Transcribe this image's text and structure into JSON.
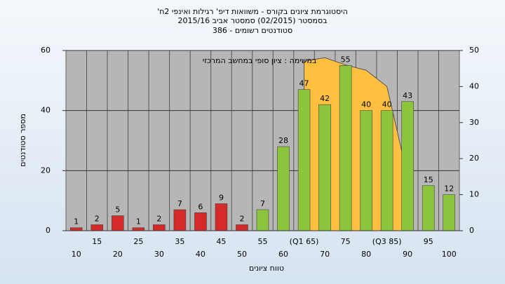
{
  "chart_data": {
    "type": "bar",
    "title": [
      "היסטוגרמת ציונים בקורס - משוואות דיפ' רגילות ואינפי 2ח'",
      "בסמסטר  (02/2015)  סמסטר אביב 2015/16",
      "סטודנטים רשומים - 386"
    ],
    "annotation": "במשימה : ציון סופי במחשב המרכזי",
    "x_label": "טווח ציונים",
    "y_label": "מספר סטודנטים",
    "categories": [
      "10",
      "15",
      "20",
      "25",
      "30",
      "35",
      "40",
      "45",
      "50",
      "55",
      "60",
      "(Q1 65)",
      "70",
      "75",
      "80",
      "(Q3 85)",
      "90",
      "95",
      "100"
    ],
    "values": [
      1,
      2,
      5,
      1,
      2,
      7,
      6,
      9,
      2,
      7,
      28,
      47,
      42,
      55,
      40,
      40,
      43,
      15,
      12
    ],
    "bar_colors": [
      "#d42a2a",
      "#d42a2a",
      "#d42a2a",
      "#d42a2a",
      "#d42a2a",
      "#d42a2a",
      "#d42a2a",
      "#d42a2a",
      "#d42a2a",
      "#8cc43c",
      "#8cc43c",
      "#8cc43c",
      "#8cc43c",
      "#8cc43c",
      "#8cc43c",
      "#8cc43c",
      "#8cc43c",
      "#8cc43c",
      "#8cc43c"
    ],
    "curve": {
      "color": "#ffc040",
      "axis": "y2",
      "values": [
        null,
        null,
        null,
        null,
        null,
        null,
        null,
        null,
        null,
        null,
        null,
        47,
        48,
        46,
        44.5,
        40,
        15,
        null,
        null
      ]
    },
    "ylim": [
      0,
      60
    ],
    "yticks": [
      0,
      20,
      40,
      60
    ],
    "y2lim": [
      0,
      50
    ],
    "y2ticks": [
      0,
      10,
      20,
      30,
      40,
      50
    ],
    "grid": true
  }
}
